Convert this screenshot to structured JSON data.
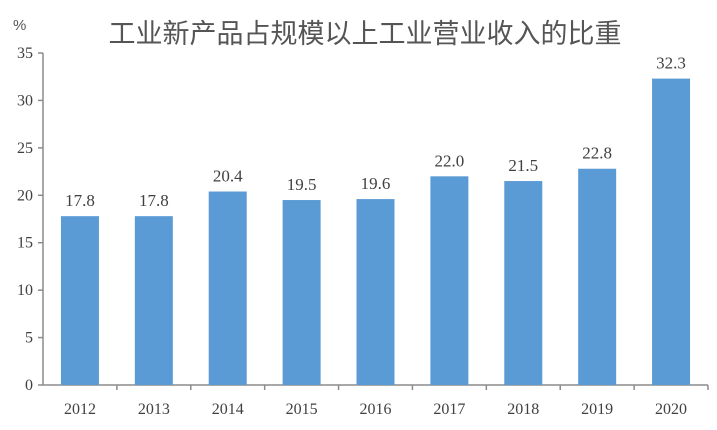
{
  "chart_data": {
    "type": "bar",
    "title": "工业新产品占规模以上工业营业收入的比重",
    "y_unit": "%",
    "categories": [
      "2012",
      "2013",
      "2014",
      "2015",
      "2016",
      "2017",
      "2018",
      "2019",
      "2020"
    ],
    "values": [
      17.8,
      17.8,
      20.4,
      19.5,
      19.6,
      22.0,
      21.5,
      22.8,
      32.3
    ],
    "value_labels": [
      "17.8",
      "17.8",
      "20.4",
      "19.5",
      "19.6",
      "22.0",
      "21.5",
      "22.8",
      "32.3"
    ],
    "y_ticks": [
      "0",
      "5",
      "10",
      "15",
      "20",
      "25",
      "30",
      "35"
    ],
    "ylim": [
      0,
      35
    ],
    "bar_color": "#5b9bd5",
    "axis_color": "#8c8c8c",
    "grid": false,
    "legend": false
  }
}
